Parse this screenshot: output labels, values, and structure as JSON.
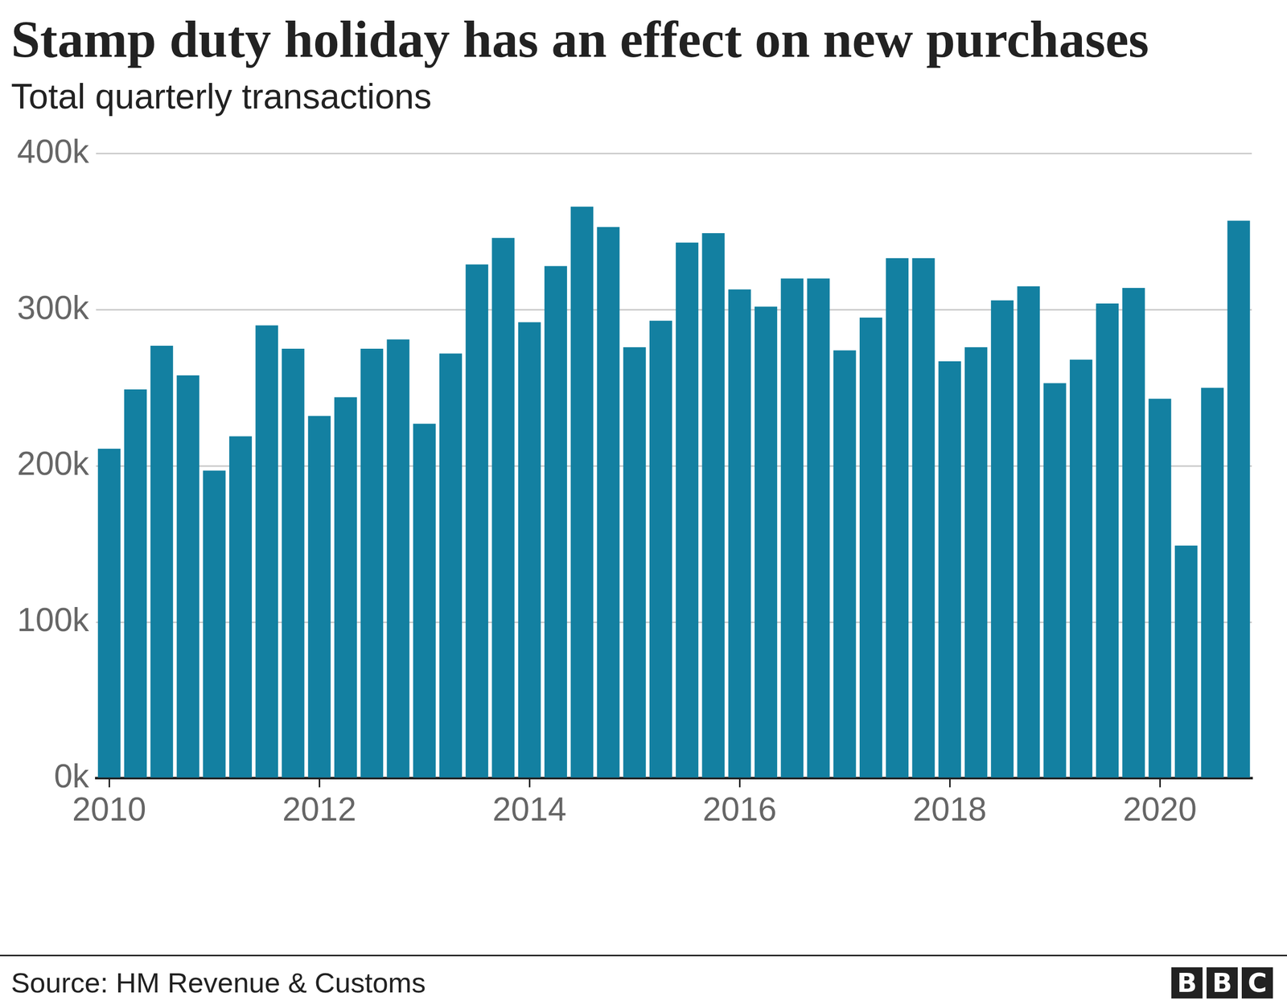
{
  "chart_data": {
    "type": "bar",
    "title": "Stamp duty holiday has an effect on new purchases",
    "subtitle": "Total quarterly transactions",
    "source": "Source: HM Revenue & Customs",
    "logo": "BBC",
    "categories": [
      "2010",
      null,
      null,
      null,
      null,
      null,
      null,
      null,
      "2012",
      null,
      null,
      null,
      null,
      null,
      null,
      null,
      "2014",
      null,
      null,
      null,
      null,
      null,
      null,
      null,
      "2016",
      null,
      null,
      null,
      null,
      null,
      null,
      null,
      "2018",
      null,
      null,
      null,
      null,
      null,
      null,
      null,
      "2020",
      null,
      null,
      null
    ],
    "values": [
      211000,
      249000,
      277000,
      258000,
      197000,
      219000,
      290000,
      275000,
      232000,
      244000,
      275000,
      281000,
      227000,
      272000,
      329000,
      346000,
      292000,
      328000,
      366000,
      353000,
      276000,
      293000,
      343000,
      349000,
      313000,
      302000,
      320000,
      320000,
      274000,
      295000,
      333000,
      333000,
      267000,
      276000,
      306000,
      315000,
      253000,
      268000,
      304000,
      314000,
      243000,
      149000,
      250000,
      357000
    ],
    "color": "#1380a1",
    "ylim": [
      0,
      400000
    ],
    "yticks": [
      {
        "value": 0,
        "label": "0k"
      },
      {
        "value": 100000,
        "label": "100k"
      },
      {
        "value": 200000,
        "label": "200k"
      },
      {
        "value": 300000,
        "label": "300k"
      },
      {
        "value": 400000,
        "label": "400k"
      }
    ],
    "grid": true
  }
}
